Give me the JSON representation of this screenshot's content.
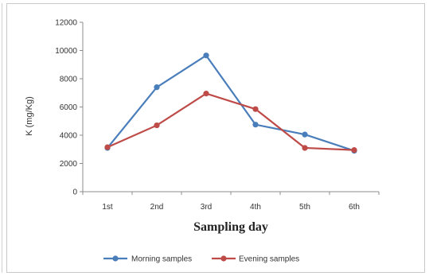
{
  "chart_data": {
    "type": "line",
    "categories": [
      "1st",
      "2nd",
      "3rd",
      "4th",
      "5th",
      "6th"
    ],
    "series": [
      {
        "name": "Morning samples",
        "values": [
          3100,
          7400,
          9650,
          4750,
          4050,
          2900
        ],
        "color": "#4a7ebb"
      },
      {
        "name": "Evening samples",
        "values": [
          3150,
          4700,
          6950,
          5850,
          3100,
          2950
        ],
        "color": "#be4b48"
      }
    ],
    "xlabel": "Sampling day",
    "ylabel": "K (mg/Kg)",
    "ylim": [
      0,
      12000
    ],
    "yticks": [
      "0",
      "2000",
      "4000",
      "6000",
      "8000",
      "10000",
      "12000"
    ],
    "legend": "bottom",
    "grid": false
  }
}
